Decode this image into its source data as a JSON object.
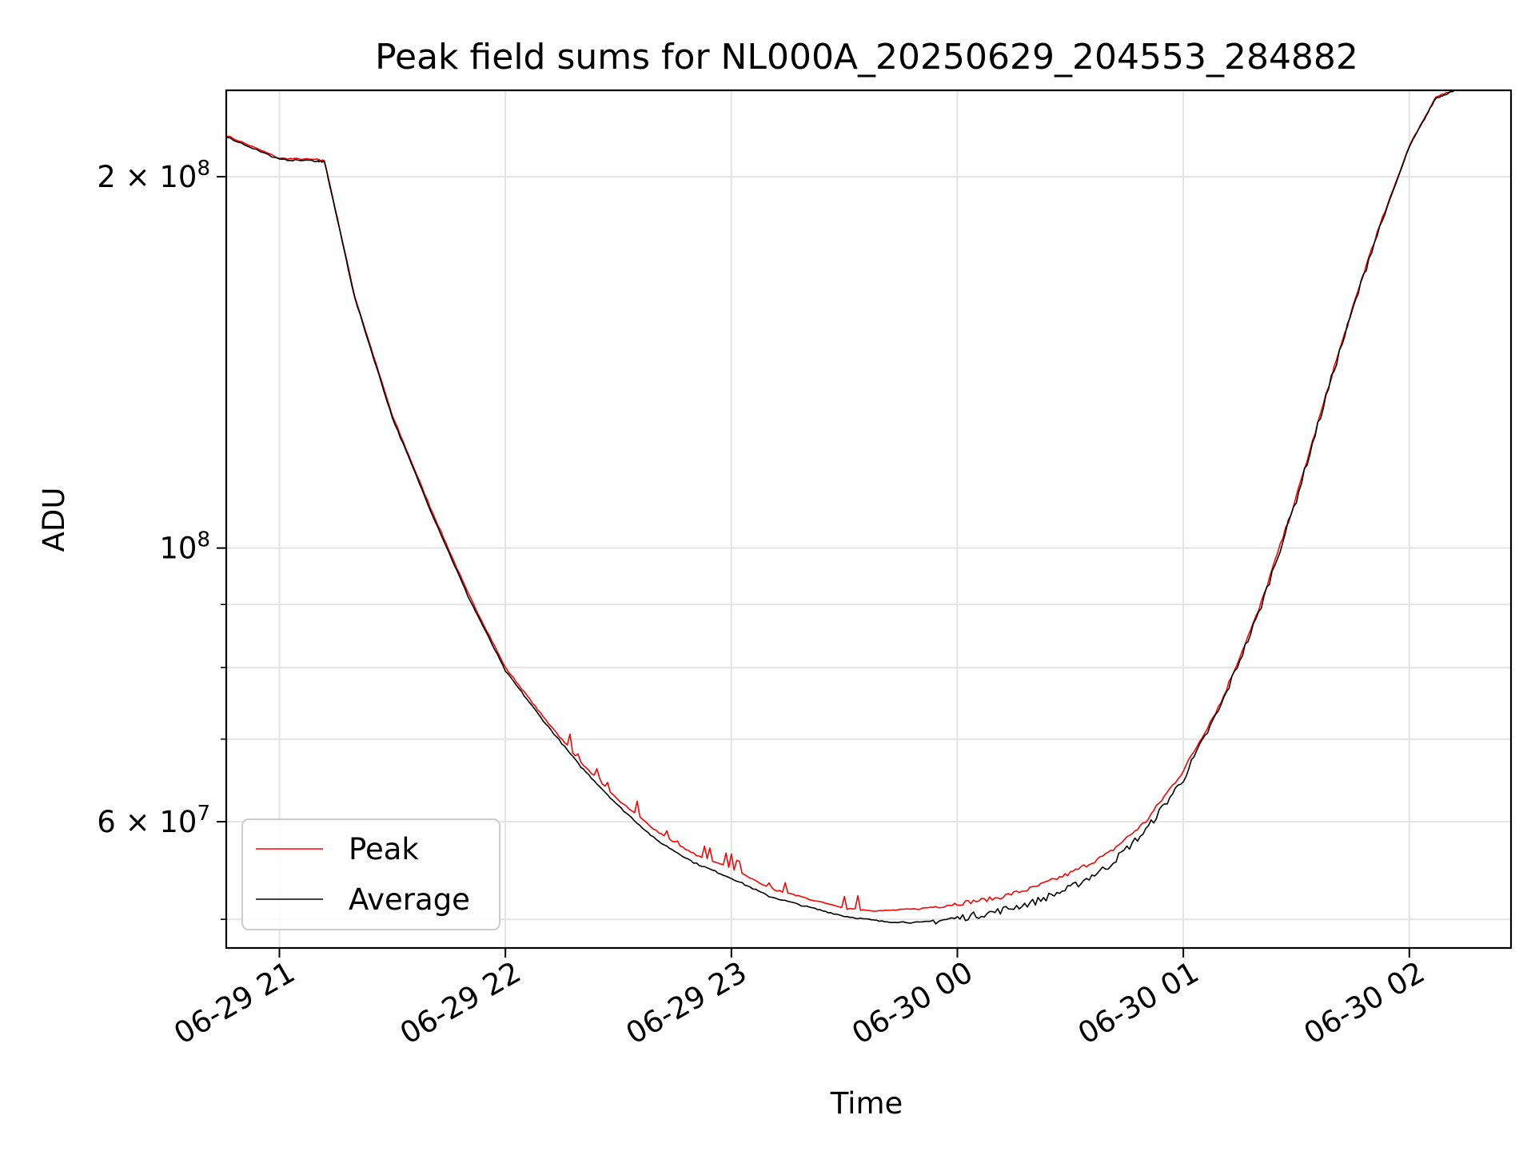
{
  "chart_data": {
    "type": "line",
    "title": "Peak field sums for NL000A_20250629_204553_284882",
    "xlabel": "Time",
    "ylabel": "ADU",
    "yscale": "log",
    "xlim": [
      "2025-06-29 20:45:53",
      "2025-06-30 02:27:00"
    ],
    "ylim": [
      47400000,
      235000000
    ],
    "x_ticks": [
      {
        "value": "2025-06-29 21:00",
        "label": "06-29 21"
      },
      {
        "value": "2025-06-29 22:00",
        "label": "06-29 22"
      },
      {
        "value": "2025-06-29 23:00",
        "label": "06-29 23"
      },
      {
        "value": "2025-06-30 00:00",
        "label": "06-30 00"
      },
      {
        "value": "2025-06-30 01:00",
        "label": "06-30 01"
      },
      {
        "value": "2025-06-30 02:00",
        "label": "06-30 02"
      }
    ],
    "y_major_ticks": [
      {
        "value": 60000000,
        "base": "6",
        "mult": "×",
        "pow": "10",
        "exp": "7"
      },
      {
        "value": 100000000,
        "base": "",
        "mult": "",
        "pow": "10",
        "exp": "8"
      },
      {
        "value": 200000000,
        "base": "2",
        "mult": "×",
        "pow": "10",
        "exp": "8"
      }
    ],
    "y_minor_ticks": [
      50000000,
      70000000,
      80000000,
      90000000
    ],
    "grid": true,
    "legend_position": "lower-left",
    "series": [
      {
        "name": "Peak",
        "color": "#ff0000",
        "x": [
          "2025-06-29 20:45:53",
          "2025-06-29 21:00",
          "2025-06-29 21:10",
          "2025-06-29 21:12",
          "2025-06-29 21:20",
          "2025-06-29 21:30",
          "2025-06-29 21:40",
          "2025-06-29 21:50",
          "2025-06-29 22:00",
          "2025-06-29 22:10",
          "2025-06-29 22:20",
          "2025-06-29 22:30",
          "2025-06-29 22:40",
          "2025-06-29 22:50",
          "2025-06-29 23:00",
          "2025-06-29 23:10",
          "2025-06-29 23:20",
          "2025-06-29 23:30",
          "2025-06-29 23:40",
          "2025-06-29 23:50",
          "2025-06-30 00:00",
          "2025-06-30 00:10",
          "2025-06-30 00:20",
          "2025-06-30 00:30",
          "2025-06-30 00:40",
          "2025-06-30 00:50",
          "2025-06-30 01:00",
          "2025-06-30 01:10",
          "2025-06-30 01:20",
          "2025-06-30 01:30",
          "2025-06-30 01:40",
          "2025-06-30 01:50",
          "2025-06-30 02:00",
          "2025-06-30 02:07",
          "2025-06-30 02:12"
        ],
        "y": [
          216000000,
          207000000,
          206500000,
          206000000,
          160000000,
          128000000,
          108000000,
          92000000,
          80000000,
          73000000,
          67000000,
          62500000,
          59000000,
          56500000,
          55000000,
          53000000,
          52000000,
          51000000,
          50800000,
          51000000,
          51500000,
          52000000,
          53000000,
          54500000,
          56500000,
          60000000,
          66000000,
          75000000,
          89000000,
          110000000,
          140000000,
          175000000,
          212000000,
          232000000,
          235000000
        ]
      },
      {
        "name": "Average",
        "color": "#000000",
        "x": [
          "2025-06-29 20:45:53",
          "2025-06-29 21:00",
          "2025-06-29 21:10",
          "2025-06-29 21:12",
          "2025-06-29 21:20",
          "2025-06-29 21:30",
          "2025-06-29 21:40",
          "2025-06-29 21:50",
          "2025-06-29 22:00",
          "2025-06-29 22:10",
          "2025-06-29 22:20",
          "2025-06-29 22:30",
          "2025-06-29 22:40",
          "2025-06-29 22:50",
          "2025-06-29 23:00",
          "2025-06-29 23:10",
          "2025-06-29 23:20",
          "2025-06-29 23:30",
          "2025-06-29 23:40",
          "2025-06-29 23:50",
          "2025-06-30 00:00",
          "2025-06-30 00:10",
          "2025-06-30 00:20",
          "2025-06-30 00:30",
          "2025-06-30 00:40",
          "2025-06-30 00:50",
          "2025-06-30 01:00",
          "2025-06-30 01:10",
          "2025-06-30 01:20",
          "2025-06-30 01:30",
          "2025-06-30 01:40",
          "2025-06-30 01:50",
          "2025-06-30 02:00",
          "2025-06-30 02:07",
          "2025-06-30 02:12"
        ],
        "y": [
          215500000,
          206500000,
          206000000,
          205500000,
          159500000,
          127500000,
          107500000,
          91500000,
          79500000,
          72500000,
          66500000,
          61800000,
          58000000,
          55600000,
          54000000,
          52200000,
          51200000,
          50300000,
          49800000,
          49700000,
          50100000,
          50700000,
          51600000,
          53000000,
          55200000,
          59000000,
          65000000,
          74500000,
          88500000,
          109500000,
          139500000,
          174500000,
          211500000,
          231500000,
          235000000
        ]
      }
    ]
  }
}
